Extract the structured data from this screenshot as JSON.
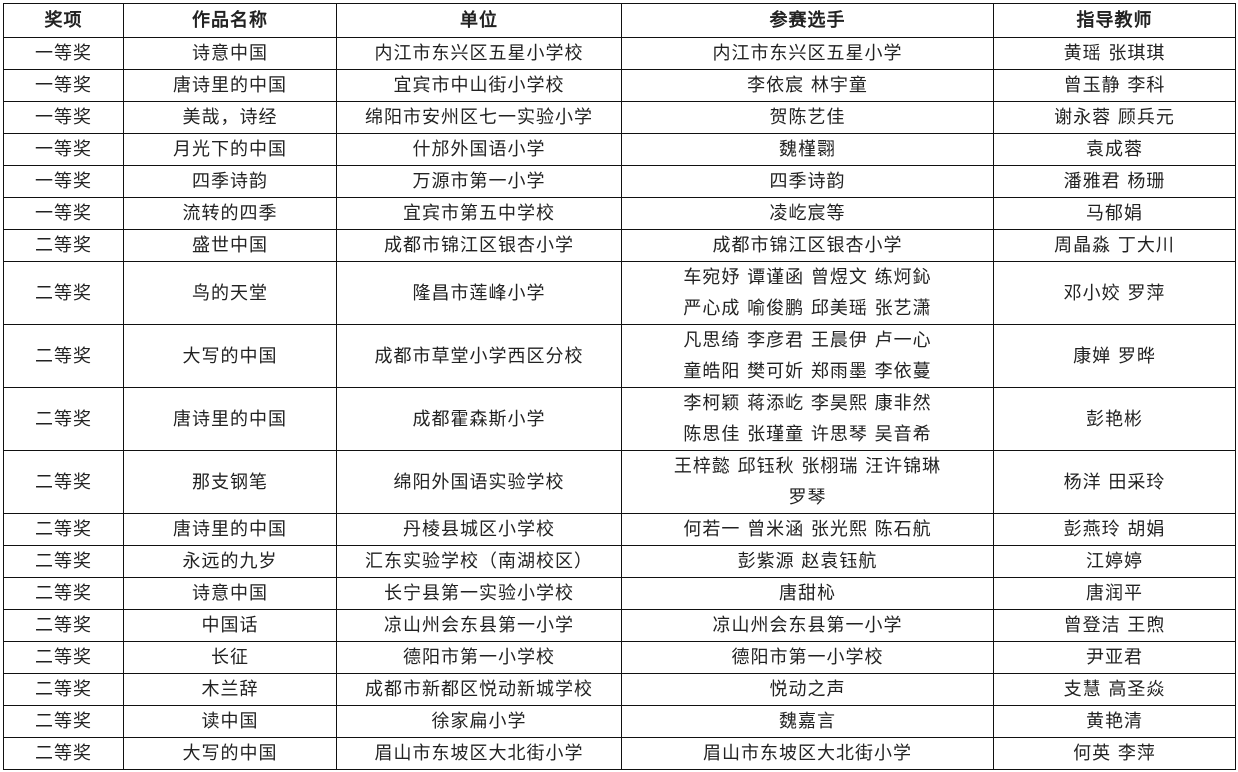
{
  "headers": [
    "奖项",
    "作品名称",
    "单位",
    "参赛选手",
    "指导教师"
  ],
  "rows": [
    [
      "一等奖",
      "诗意中国",
      "内江市东兴区五星小学校",
      "内江市东兴区五星小学",
      "黄瑶  张琪琪"
    ],
    [
      "一等奖",
      "唐诗里的中国",
      "宜宾市中山街小学校",
      "李依宸  林宇童",
      "曾玉静  李科"
    ],
    [
      "一等奖",
      "美哉，诗经",
      "绵阳市安州区七一实验小学",
      "贺陈艺佳",
      "谢永蓉  顾兵元"
    ],
    [
      "一等奖",
      "月光下的中国",
      "什邡外国语小学",
      "魏槿翾",
      "袁成蓉"
    ],
    [
      "一等奖",
      "四季诗韵",
      "万源市第一小学",
      "四季诗韵",
      "潘雅君  杨珊"
    ],
    [
      "一等奖",
      "流转的四季",
      "宜宾市第五中学校",
      "凌屹宸等",
      "马郁娟"
    ],
    [
      "二等奖",
      "盛世中国",
      "成都市锦江区银杏小学",
      "成都市锦江区银杏小学",
      "周晶淼  丁大川"
    ],
    [
      "二等奖",
      "鸟的天堂",
      "隆昌市莲峰小学",
      "车宛妤 谭谨函 曾煜文 练炣鈊\n严心成 喻俊鹏 邱美瑶 张艺潇",
      "邓小姣  罗萍"
    ],
    [
      "二等奖",
      "大写的中国",
      "成都市草堂小学西区分校",
      "凡思绮 李彦君 王晨伊 卢一心\n童皓阳 樊可妡 郑雨墨 李依蔓",
      "康婵  罗晔"
    ],
    [
      "二等奖",
      "唐诗里的中国",
      "成都霍森斯小学",
      "李柯颖 蒋添屹 李昊熙 康非然\n陈思佳 张瑾童 许思琴 吴音希",
      "彭艳彬"
    ],
    [
      "二等奖",
      "那支钢笔",
      "绵阳外国语实验学校",
      "王梓懿 邱钰秋 张栩瑞 汪许锦琳\n罗琴",
      "杨洋  田采玲"
    ],
    [
      "二等奖",
      "唐诗里的中国",
      "丹棱县城区小学校",
      "何若一 曾米涵 张光熙 陈石航",
      "彭燕玲  胡娟"
    ],
    [
      "二等奖",
      "永远的九岁",
      "汇东实验学校（南湖校区）",
      "彭紫源  赵袁钰航",
      "江婷婷"
    ],
    [
      "二等奖",
      "诗意中国",
      "长宁县第一实验小学校",
      "唐甜杺",
      "唐润平"
    ],
    [
      "二等奖",
      "中国话",
      "凉山州会东县第一小学",
      "凉山州会东县第一小学",
      "曾登洁  王煦"
    ],
    [
      "二等奖",
      "长征",
      "德阳市第一小学校",
      "德阳市第一小学校",
      "尹亚君"
    ],
    [
      "二等奖",
      "木兰辞",
      "成都市新都区悦动新城学校",
      "悦动之声",
      "支慧  高圣焱"
    ],
    [
      "二等奖",
      "读中国",
      "徐家扁小学",
      "魏嘉言",
      "黄艳清"
    ],
    [
      "二等奖",
      "大写的中国",
      "眉山市东坡区大北街小学",
      "眉山市东坡区大北街小学",
      "何英  李萍"
    ]
  ]
}
